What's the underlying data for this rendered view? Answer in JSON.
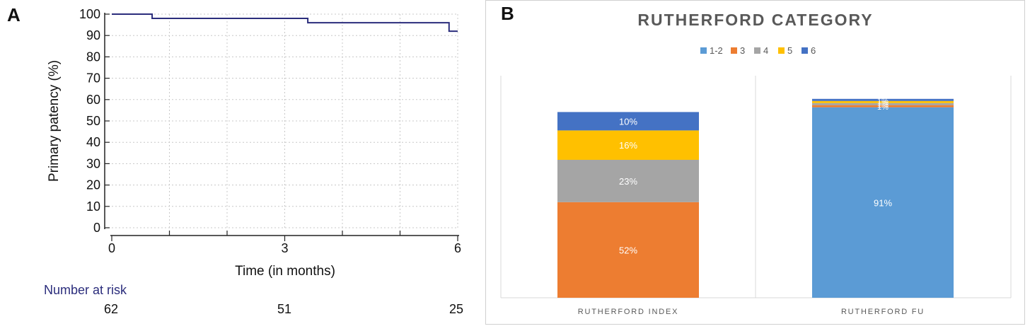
{
  "panelA": {
    "letter": "A",
    "ylabel": "Primary patency (%)",
    "xlabel": "Time (in months)",
    "risk_title": "Number at risk",
    "risk_values": [
      "62",
      "51",
      "25"
    ],
    "color": "#2b2d7c"
  },
  "panelB": {
    "letter": "B",
    "title": "RUTHERFORD  CATEGORY",
    "legend": [
      {
        "label": "1-2",
        "color": "#5b9bd5"
      },
      {
        "label": "3",
        "color": "#ed7d31"
      },
      {
        "label": "4",
        "color": "#a5a5a5"
      },
      {
        "label": "5",
        "color": "#ffc000"
      },
      {
        "label": "6",
        "color": "#4472c4"
      }
    ],
    "categories": [
      "RUTHERFORD INDEX",
      "RUTHERFORD FU"
    ]
  },
  "chart_data": [
    {
      "type": "line",
      "title": "",
      "xlabel": "Time (in months)",
      "ylabel": "Primary patency (%)",
      "xlim": [
        0,
        6
      ],
      "ylim": [
        0,
        100
      ],
      "x_ticks": [
        0,
        3,
        6
      ],
      "y_ticks": [
        0,
        10,
        20,
        30,
        40,
        50,
        60,
        70,
        80,
        90,
        100
      ],
      "series": [
        {
          "x": [
            0,
            0.7,
            0.7,
            3.4,
            3.4,
            5.85,
            5.85,
            6.0
          ],
          "y": [
            100,
            100,
            98,
            98,
            96,
            96,
            92,
            92
          ]
        }
      ],
      "number_at_risk": {
        "x": [
          0,
          3,
          6
        ],
        "values": [
          62,
          51,
          25
        ]
      }
    },
    {
      "type": "bar",
      "stacked": true,
      "title": "RUTHERFORD  CATEGORY",
      "categories": [
        "RUTHERFORD INDEX",
        "RUTHERFORD FU"
      ],
      "legend_position": "top",
      "series": [
        {
          "name": "1-2",
          "values": [
            0,
            91
          ],
          "labels": [
            "",
            "91%"
          ]
        },
        {
          "name": "3",
          "values": [
            52,
            1
          ],
          "labels": [
            "52%",
            "1%"
          ]
        },
        {
          "name": "4",
          "values": [
            23,
            1
          ],
          "labels": [
            "23%",
            "1%"
          ]
        },
        {
          "name": "5",
          "values": [
            16,
            1
          ],
          "labels": [
            "16%",
            "1%"
          ]
        },
        {
          "name": "6",
          "values": [
            10,
            1
          ],
          "labels": [
            "10%",
            "1%"
          ]
        }
      ]
    }
  ]
}
